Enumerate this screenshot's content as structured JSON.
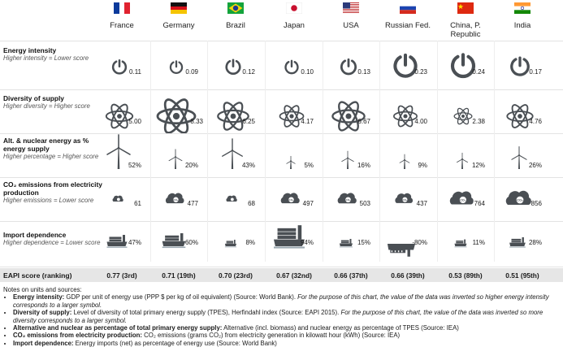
{
  "colors": {
    "icon": "#4a4f54",
    "score_bar": "#e6e6e6",
    "separator": "#e3e3e3"
  },
  "chart_data": {
    "type": "table",
    "countries": [
      "France",
      "Germany",
      "Brazil",
      "Japan",
      "USA",
      "Russian Fed.",
      "China, P. Republic",
      "India"
    ],
    "rows": [
      {
        "key": "energy_intensity",
        "title": "Energy intensity",
        "subtitle": "Higher intensity = Lower score",
        "icon": "power-icon",
        "labels": [
          "0.11",
          "0.09",
          "0.12",
          "0.10",
          "0.13",
          "0.23",
          "0.24",
          "0.17"
        ],
        "values": [
          0.11,
          0.09,
          0.12,
          0.1,
          0.13,
          0.23,
          0.24,
          0.17
        ]
      },
      {
        "key": "diversity_of_supply",
        "title": "Diversity of supply",
        "subtitle": "Higher diversity = Higher score",
        "icon": "atom-icon",
        "labels": [
          "5.00",
          "8.33",
          "6.25",
          "4.17",
          "6.67",
          "4.00",
          "2.38",
          "4.76"
        ],
        "values": [
          5.0,
          8.33,
          6.25,
          4.17,
          6.67,
          4.0,
          2.38,
          4.76
        ]
      },
      {
        "key": "alt_nuclear",
        "title": "Alt. & nuclear energy as % energy supply",
        "subtitle": "Higher percentage = Higher score",
        "icon": "wind-turbine-icon",
        "labels": [
          "52%",
          "20%",
          "43%",
          "5%",
          "16%",
          "9%",
          "12%",
          "26%"
        ],
        "values": [
          52,
          20,
          43,
          5,
          16,
          9,
          12,
          26
        ]
      },
      {
        "key": "co2",
        "title": "CO₂ emissions from electricity production",
        "subtitle": "Higher emissions = Lower score",
        "icon": "co2-cloud-icon",
        "labels": [
          "61",
          "477",
          "68",
          "497",
          "503",
          "437",
          "764",
          "856"
        ],
        "values": [
          61,
          477,
          68,
          497,
          503,
          437,
          764,
          856
        ]
      },
      {
        "key": "import_dependence",
        "title": "Import dependence",
        "subtitle": "Higher dependence = Lower score",
        "icon": "ship-icon",
        "labels": [
          "47%",
          "60%",
          "8%",
          "94%",
          "15%",
          "-80%",
          "11%",
          "28%"
        ],
        "values": [
          47,
          60,
          8,
          94,
          15,
          -80,
          11,
          28
        ]
      }
    ],
    "score": {
      "label": "EAPI score (ranking)",
      "labels": [
        "0.77 (3rd)",
        "0.71 (19th)",
        "0.70 (23rd)",
        "0.67 (32nd)",
        "0.66 (37th)",
        "0.66 (39th)",
        "0.53 (89th)",
        "0.51 (95th)"
      ],
      "values": [
        0.77,
        0.71,
        0.7,
        0.67,
        0.66,
        0.66,
        0.53,
        0.51
      ]
    }
  },
  "notes": {
    "heading": "Notes on units and sources:",
    "items": [
      {
        "bold": "Energy intensity:",
        "text": " GDP per unit of energy use (PPP $ per kg of oil equivalent) (Source: World Bank). ",
        "italic": "For the purpose of this chart, the value of the data was inverted so higher energy intensity corresponds to a larger symbol."
      },
      {
        "bold": "Diversity of supply:",
        "text": " Level of diversity of total primary energy supply (TPES), Herfindahl index (Source: EAPI 2015). ",
        "italic": "For the purpose of this chart, the value of the data was inverted so more diversity corresponds to a larger symbol."
      },
      {
        "bold": "Alternative and nuclear as percentage of total primary energy supply:",
        "text": " Alternative (incl. biomass) and nuclear energy as percentage of TPES (Source: IEA)",
        "italic": ""
      },
      {
        "bold": "CO₂ emissions from electricity production:",
        "text": " CO₂  emissions (grams CO₂) from electricity generation in kilowatt hour (kWh) (Source: IEA)",
        "italic": ""
      },
      {
        "bold": "Import dependence:",
        "text": " Energy imports (net) as percentage of energy use (Source: World Bank)",
        "italic": ""
      }
    ]
  }
}
